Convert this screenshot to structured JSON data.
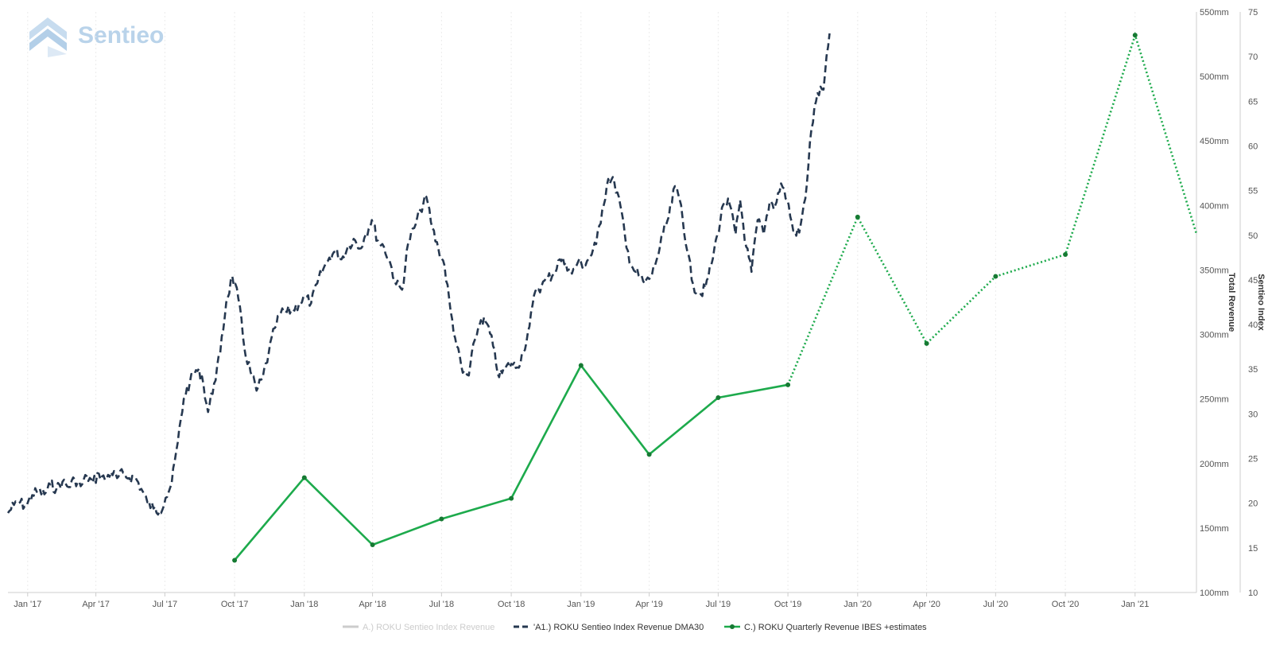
{
  "logo": {
    "text": "Sentieo",
    "color": "#b9d3ea"
  },
  "chart_data": {
    "type": "line",
    "x_axis": {
      "range": [
        "2016-12-06",
        "2021-03-23"
      ],
      "ticks": [
        {
          "date": "2017-01-01",
          "label": "Jan '17"
        },
        {
          "date": "2017-04-01",
          "label": "Apr '17"
        },
        {
          "date": "2017-07-01",
          "label": "Jul '17"
        },
        {
          "date": "2017-10-01",
          "label": "Oct '17"
        },
        {
          "date": "2018-01-01",
          "label": "Jan '18"
        },
        {
          "date": "2018-04-01",
          "label": "Apr '18"
        },
        {
          "date": "2018-07-01",
          "label": "Jul '18"
        },
        {
          "date": "2018-10-01",
          "label": "Oct '18"
        },
        {
          "date": "2019-01-01",
          "label": "Jan '19"
        },
        {
          "date": "2019-04-01",
          "label": "Apr '19"
        },
        {
          "date": "2019-07-01",
          "label": "Jul '19"
        },
        {
          "date": "2019-10-01",
          "label": "Oct '19"
        },
        {
          "date": "2020-01-01",
          "label": "Jan '20"
        },
        {
          "date": "2020-04-01",
          "label": "Apr '20"
        },
        {
          "date": "2020-07-01",
          "label": "Jul '20"
        },
        {
          "date": "2020-10-01",
          "label": "Oct '20"
        },
        {
          "date": "2021-01-01",
          "label": "Jan '21"
        }
      ]
    },
    "y_axes": [
      {
        "id": "revenue",
        "title": "Total Revenue",
        "range": [
          100,
          550
        ],
        "ticks": [
          100,
          150,
          200,
          250,
          300,
          350,
          400,
          450,
          500,
          550
        ],
        "tick_labels": [
          "100mm",
          "150mm",
          "200mm",
          "250mm",
          "300mm",
          "350mm",
          "400mm",
          "450mm",
          "500mm",
          "550mm"
        ]
      },
      {
        "id": "index",
        "title": "Sentieo Index",
        "range": [
          10,
          75
        ],
        "ticks": [
          10,
          15,
          20,
          25,
          30,
          35,
          40,
          45,
          50,
          55,
          60,
          65,
          70,
          75
        ],
        "tick_labels": [
          "10",
          "15",
          "20",
          "25",
          "30",
          "35",
          "40",
          "45",
          "50",
          "55",
          "60",
          "65",
          "70",
          "75"
        ]
      }
    ],
    "grid": "vertical",
    "legend_position": "bottom-center",
    "series": [
      {
        "name": "A.) ROKU Sentieo Index Revenue",
        "axis": "index",
        "style": "solid",
        "color": "#cccccc",
        "visible": false,
        "points": []
      },
      {
        "name": "'A1.) ROKU Sentieo Index Revenue DMA30",
        "axis": "index",
        "style": "dashed",
        "color": "#263850",
        "points": [
          [
            "2016-12-06",
            18.9
          ],
          [
            "2016-12-14",
            19.8
          ],
          [
            "2016-12-22",
            20.1
          ],
          [
            "2016-12-30",
            19.6
          ],
          [
            "2017-01-07",
            20.9
          ],
          [
            "2017-01-15",
            21.4
          ],
          [
            "2017-01-23",
            21.0
          ],
          [
            "2017-01-31",
            22.1
          ],
          [
            "2017-02-08",
            21.6
          ],
          [
            "2017-02-16",
            22.4
          ],
          [
            "2017-02-24",
            21.8
          ],
          [
            "2017-03-04",
            22.7
          ],
          [
            "2017-03-12",
            21.9
          ],
          [
            "2017-03-20",
            23.0
          ],
          [
            "2017-03-28",
            22.3
          ],
          [
            "2017-04-05",
            23.3
          ],
          [
            "2017-04-13",
            22.6
          ],
          [
            "2017-04-21",
            23.5
          ],
          [
            "2017-04-29",
            22.8
          ],
          [
            "2017-05-07",
            23.4
          ],
          [
            "2017-05-15",
            22.8
          ],
          [
            "2017-05-23",
            22.9
          ],
          [
            "2017-05-31",
            21.6
          ],
          [
            "2017-06-08",
            20.1
          ],
          [
            "2017-06-16",
            19.4
          ],
          [
            "2017-06-24",
            19.1
          ],
          [
            "2017-07-02",
            20.6
          ],
          [
            "2017-07-10",
            22.2
          ],
          [
            "2017-07-18",
            26.8
          ],
          [
            "2017-07-26",
            31.7
          ],
          [
            "2017-08-03",
            33.5
          ],
          [
            "2017-08-11",
            34.9
          ],
          [
            "2017-08-19",
            34.2
          ],
          [
            "2017-08-27",
            30.2
          ],
          [
            "2017-09-04",
            33.4
          ],
          [
            "2017-09-12",
            36.8
          ],
          [
            "2017-09-20",
            42.5
          ],
          [
            "2017-09-28",
            45.4
          ],
          [
            "2017-10-06",
            42.9
          ],
          [
            "2017-10-14",
            37.3
          ],
          [
            "2017-10-22",
            34.7
          ],
          [
            "2017-10-30",
            32.6
          ],
          [
            "2017-11-07",
            34.0
          ],
          [
            "2017-11-15",
            36.8
          ],
          [
            "2017-11-23",
            39.6
          ],
          [
            "2017-12-01",
            41.3
          ],
          [
            "2017-12-09",
            41.4
          ],
          [
            "2017-12-17",
            41.7
          ],
          [
            "2017-12-25",
            42.3
          ],
          [
            "2018-01-02",
            43.1
          ],
          [
            "2018-01-10",
            42.4
          ],
          [
            "2018-01-18",
            44.6
          ],
          [
            "2018-01-26",
            46.2
          ],
          [
            "2018-02-03",
            47.5
          ],
          [
            "2018-02-11",
            48.2
          ],
          [
            "2018-02-19",
            47.3
          ],
          [
            "2018-02-27",
            48.6
          ],
          [
            "2018-03-07",
            49.6
          ],
          [
            "2018-03-15",
            48.5
          ],
          [
            "2018-03-23",
            50.1
          ],
          [
            "2018-03-31",
            51.7
          ],
          [
            "2018-04-08",
            49.4
          ],
          [
            "2018-04-16",
            48.7
          ],
          [
            "2018-04-24",
            47.0
          ],
          [
            "2018-05-02",
            44.5
          ],
          [
            "2018-05-10",
            43.9
          ],
          [
            "2018-05-18",
            49.1
          ],
          [
            "2018-05-26",
            50.8
          ],
          [
            "2018-06-03",
            52.8
          ],
          [
            "2018-06-11",
            54.3
          ],
          [
            "2018-06-19",
            50.8
          ],
          [
            "2018-06-27",
            48.4
          ],
          [
            "2018-07-05",
            46.6
          ],
          [
            "2018-07-13",
            41.5
          ],
          [
            "2018-07-21",
            37.6
          ],
          [
            "2018-07-29",
            34.6
          ],
          [
            "2018-08-06",
            34.3
          ],
          [
            "2018-08-14",
            38.3
          ],
          [
            "2018-08-22",
            40.5
          ],
          [
            "2018-08-30",
            40.1
          ],
          [
            "2018-09-07",
            37.6
          ],
          [
            "2018-09-15",
            34.1
          ],
          [
            "2018-09-23",
            35.1
          ],
          [
            "2018-10-01",
            35.6
          ],
          [
            "2018-10-09",
            35.2
          ],
          [
            "2018-10-17",
            37.0
          ],
          [
            "2018-10-25",
            39.8
          ],
          [
            "2018-11-02",
            43.8
          ],
          [
            "2018-11-10",
            44.3
          ],
          [
            "2018-11-18",
            45.2
          ],
          [
            "2018-11-26",
            45.7
          ],
          [
            "2018-12-04",
            47.3
          ],
          [
            "2018-12-12",
            46.9
          ],
          [
            "2018-12-20",
            45.7
          ],
          [
            "2018-12-28",
            47.0
          ],
          [
            "2019-01-05",
            46.7
          ],
          [
            "2019-01-13",
            47.6
          ],
          [
            "2019-01-21",
            49.0
          ],
          [
            "2019-01-29",
            52.8
          ],
          [
            "2019-02-06",
            56.3
          ],
          [
            "2019-02-14",
            55.9
          ],
          [
            "2019-02-22",
            53.3
          ],
          [
            "2019-03-02",
            48.6
          ],
          [
            "2019-03-10",
            46.4
          ],
          [
            "2019-03-18",
            45.5
          ],
          [
            "2019-03-26",
            44.6
          ],
          [
            "2019-04-03",
            45.3
          ],
          [
            "2019-04-11",
            47.3
          ],
          [
            "2019-04-19",
            50.0
          ],
          [
            "2019-04-27",
            52.1
          ],
          [
            "2019-05-05",
            55.5
          ],
          [
            "2019-05-13",
            53.4
          ],
          [
            "2019-05-21",
            48.3
          ],
          [
            "2019-05-29",
            44.5
          ],
          [
            "2019-06-06",
            43.3
          ],
          [
            "2019-06-14",
            44.1
          ],
          [
            "2019-06-22",
            46.7
          ],
          [
            "2019-06-30",
            50.1
          ],
          [
            "2019-07-08",
            53.5
          ],
          [
            "2019-07-16",
            53.5
          ],
          [
            "2019-07-24",
            50.1
          ],
          [
            "2019-07-30",
            53.9
          ],
          [
            "2019-08-07",
            48.7
          ],
          [
            "2019-08-14",
            45.9
          ],
          [
            "2019-08-22",
            51.7
          ],
          [
            "2019-08-30",
            50.1
          ],
          [
            "2019-09-07",
            53.8
          ],
          [
            "2019-09-14",
            53.3
          ],
          [
            "2019-09-22",
            55.8
          ],
          [
            "2019-09-30",
            54.0
          ],
          [
            "2019-10-08",
            50.5
          ],
          [
            "2019-10-16",
            50.3
          ],
          [
            "2019-10-24",
            54.1
          ],
          [
            "2019-11-01",
            61.9
          ],
          [
            "2019-11-09",
            65.9
          ],
          [
            "2019-11-17",
            66.3
          ],
          [
            "2019-11-25",
            72.6
          ]
        ]
      },
      {
        "name": "C.) ROKU Quarterly Revenue IBES +estimates",
        "axis": "revenue",
        "style": "solid",
        "estimate_style": "dotted",
        "color": "#1daa4c",
        "marker_color": "#167a33",
        "points": [
          {
            "date": "2017-10-01",
            "value": 125,
            "estimate": false
          },
          {
            "date": "2018-01-01",
            "value": 189,
            "estimate": false
          },
          {
            "date": "2018-04-01",
            "value": 137,
            "estimate": false
          },
          {
            "date": "2018-07-01",
            "value": 157,
            "estimate": false
          },
          {
            "date": "2018-10-01",
            "value": 173,
            "estimate": false
          },
          {
            "date": "2019-01-01",
            "value": 276,
            "estimate": false
          },
          {
            "date": "2019-04-01",
            "value": 207,
            "estimate": false
          },
          {
            "date": "2019-07-01",
            "value": 251,
            "estimate": false
          },
          {
            "date": "2019-10-01",
            "value": 261,
            "estimate": false
          },
          {
            "date": "2020-01-01",
            "value": 391,
            "estimate": true
          },
          {
            "date": "2020-04-01",
            "value": 293,
            "estimate": true
          },
          {
            "date": "2020-07-01",
            "value": 345,
            "estimate": true
          },
          {
            "date": "2020-10-01",
            "value": 362,
            "estimate": true
          },
          {
            "date": "2021-01-01",
            "value": 532,
            "estimate": true
          },
          {
            "date": "2021-03-23",
            "value": 378,
            "estimate": true
          }
        ]
      }
    ]
  }
}
